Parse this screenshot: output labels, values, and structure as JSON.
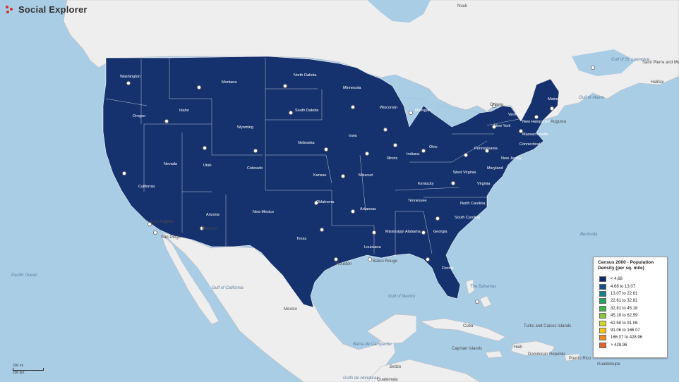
{
  "app": {
    "brand": "Social Explorer"
  },
  "legend": {
    "title_line1": "Census 2000 - Population",
    "title_line2": "Density (per sq. mile)",
    "items": [
      {
        "label": "< 4.68",
        "color": "#0d2a6e"
      },
      {
        "label": "4.68 to 13.07",
        "color": "#174f8a"
      },
      {
        "label": "13.07 to 22.61",
        "color": "#1d7f8a"
      },
      {
        "label": "22.61 to 32.81",
        "color": "#23a35a"
      },
      {
        "label": "32.81 to 45.18",
        "color": "#3fb34a"
      },
      {
        "label": "45.18 to 62.59",
        "color": "#8cc63f"
      },
      {
        "label": "62.59 to 91.06",
        "color": "#cfd62f"
      },
      {
        "label": "91.06 to 166.07",
        "color": "#f5c416"
      },
      {
        "label": "166.07 to 428.96",
        "color": "#ee8a1d"
      },
      {
        "label": "> 428.96",
        "color": "#e1632c"
      }
    ]
  },
  "scale": {
    "miles": "200 mi",
    "km": "200 km"
  },
  "labels": {
    "states": [
      "Washington",
      "Oregon",
      "Idaho",
      "Montana",
      "Wyoming",
      "Nevada",
      "Utah",
      "Colorado",
      "California",
      "Arizona",
      "New Mexico",
      "North Dakota",
      "South Dakota",
      "Nebraska",
      "Kansas",
      "Oklahoma",
      "Texas",
      "Minnesota",
      "Iowa",
      "Missouri",
      "Arkansas",
      "Louisiana",
      "Wisconsin",
      "Illinois",
      "Michigan",
      "Indiana",
      "Ohio",
      "Kentucky",
      "Tennessee",
      "Mississippi",
      "Alabama",
      "Georgia",
      "Florida",
      "South Carolina",
      "North Carolina",
      "Virginia",
      "West Virginia",
      "Pennsylvania",
      "New York",
      "Maryland",
      "New Jersey",
      "Connecticut",
      "Massachusetts",
      "Vermont",
      "New Hampshire",
      "Maine"
    ],
    "cities": [
      "Los Angeles",
      "San Diego",
      "Phoenix",
      "Houston",
      "Baton Rouge",
      "Ottawa",
      "Halifax",
      "Augusta"
    ],
    "water": [
      "Pacific Ocean",
      "Gulf of California",
      "Gulf of Mexico",
      "Bermuda",
      "The Bahamas",
      "Gulf of St. Lawrence",
      "Gulf of Maine",
      "Bahía de Campeche",
      "Golfo de Honduras"
    ],
    "countries": [
      "Mexico",
      "Cuba",
      "Belize",
      "Guatemala",
      "Dominican Republic",
      "Puerto Rico",
      "Turks and Caicos Islands",
      "Cayman Islands",
      "Haiti",
      "Guadeloupe",
      "Saint Pierre and Miquelon",
      "Nuuk"
    ]
  }
}
